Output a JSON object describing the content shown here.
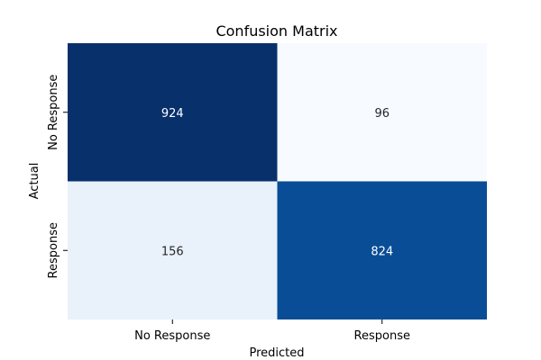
{
  "chart_data": {
    "type": "heatmap",
    "title": "Confusion Matrix",
    "xlabel": "Predicted",
    "ylabel": "Actual",
    "x_categories": [
      "No Response",
      "Response"
    ],
    "y_categories": [
      "No Response",
      "Response"
    ],
    "values": [
      [
        924,
        96
      ],
      [
        156,
        824
      ]
    ],
    "colormap": "Blues",
    "colorbar": false,
    "colors": {
      "924": "#08306b",
      "824": "#084d96",
      "156": "#e9f1fa",
      "96": "#f7fbff"
    }
  }
}
